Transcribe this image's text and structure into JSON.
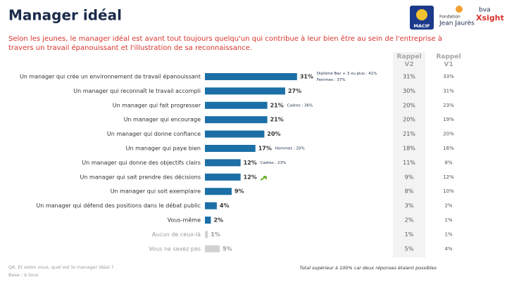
{
  "chart_data": {
    "type": "hbar",
    "title": "Manager idéal",
    "subtitle": "Selon les jeunes, le manager idéal est avant tout toujours quelqu'un qui contribue à leur bien être au sein de l'entreprise à travers un travail épanouissant et l'illustration de sa reconnaissance.",
    "logos": [
      "MACIF",
      "Fondation",
      "Jean Jaurès",
      "bva",
      "Xsight"
    ],
    "categories": [
      "Un manager qui crée un environnement de travail épanouissant",
      "Un manager qui reconnaît le travail accompli",
      "Un manager qui fait progresser",
      "Un manager qui encourage",
      "Un manager qui donne confiance",
      "Un manager qui paye bien",
      "Un manager qui donne des objectifs clairs",
      "Un manager qui sait prendre des décisions",
      "Un manager qui soit exemplaire",
      "Un manager qui défend des positions dans le débat public",
      "Vous-même",
      "Aucun de ceux-là",
      "Vous ne savez pas"
    ],
    "values": [
      31,
      27,
      21,
      21,
      20,
      17,
      12,
      12,
      9,
      4,
      2,
      1,
      5
    ],
    "value_labels": [
      "31%",
      "27%",
      "21%",
      "21%",
      "20%",
      "17%",
      "12%",
      "12%",
      "9%",
      "4%",
      "2%",
      "1%",
      "5%"
    ],
    "colors": [
      "#1b6fa6",
      "#1b6fa6",
      "#1b6fa6",
      "#1b6fa6",
      "#1b6fa6",
      "#1b6fa6",
      "#1b6fa6",
      "#1b6fa6",
      "#1b6fa6",
      "#1b6fa6",
      "#1b6fa6",
      "#d2d2d2",
      "#d2d2d2"
    ],
    "text_colors": [
      "#333333",
      "#333333",
      "#333333",
      "#333333",
      "#333333",
      "#333333",
      "#333333",
      "#333333",
      "#333333",
      "#333333",
      "#333333",
      "#9a9a9a",
      "#9a9a9a"
    ],
    "annotations": [
      [
        "Diplôme Bac + 3 ou plus : 41%",
        "Femmes : 37%"
      ],
      null,
      [
        "Cadres : 36%"
      ],
      null,
      null,
      [
        "Hommes : 20%"
      ],
      [
        "Cadres : 23%"
      ],
      null,
      null,
      null,
      null,
      null,
      null
    ],
    "recall": [
      {
        "name": "Rappel V2",
        "values": [
          31,
          30,
          20,
          20,
          21,
          18,
          11,
          9,
          8,
          3,
          2,
          1,
          5
        ],
        "value_labels": [
          "31%",
          "30%",
          "20%",
          "20%",
          "21%",
          "18%",
          "11%",
          "9%",
          "8%",
          "3%",
          "2%",
          "1%",
          "5%"
        ]
      },
      {
        "name": "Rappel V1",
        "values": [
          33,
          31,
          23,
          19,
          20,
          16,
          8,
          12,
          10,
          2,
          1,
          1,
          4
        ],
        "value_labels": [
          "33%",
          "31%",
          "23%",
          "19%",
          "20%",
          "16%",
          "8%",
          "12%",
          "10%",
          "2%",
          "1%",
          "1%",
          "4%"
        ]
      }
    ],
    "question": "Q6. Et selon vous, quel est le manager idéal ?",
    "base": "Base : à tous",
    "note": "Total supérieur à 100% car deux réponses étaient possibles"
  }
}
